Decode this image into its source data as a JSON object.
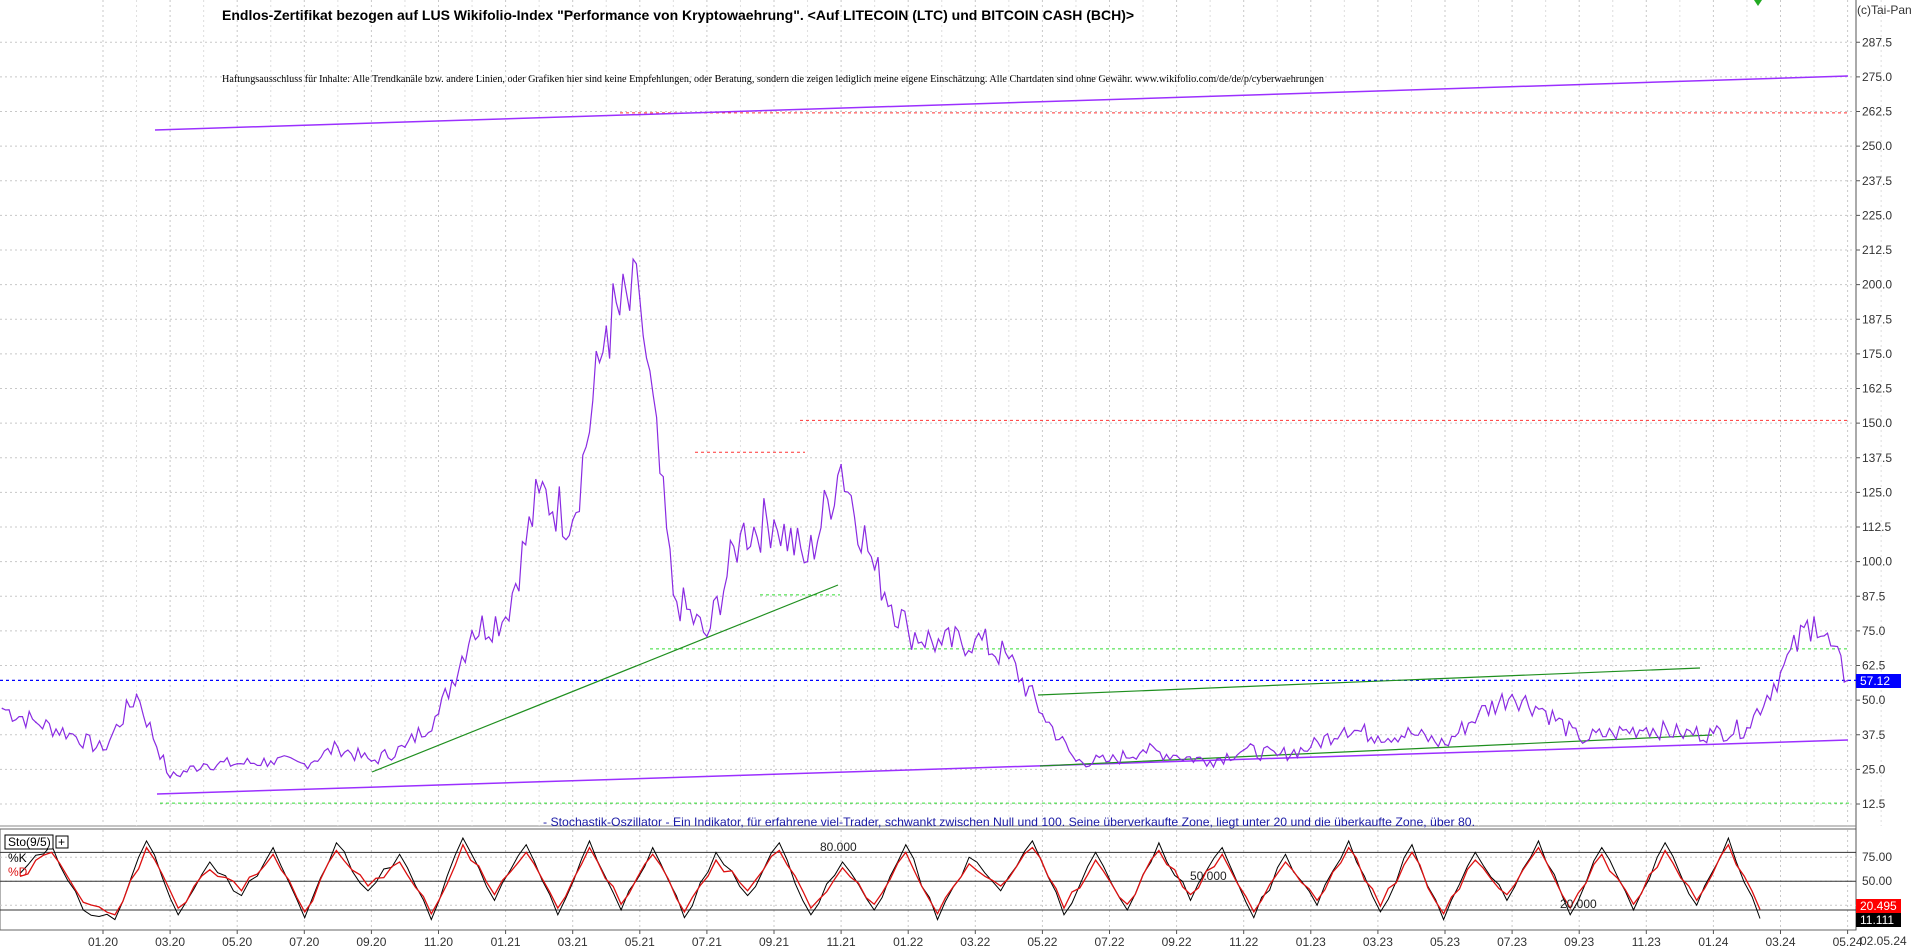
{
  "header": {
    "title": "Endlos-Zertifikat bezogen auf LUS Wikifolio-Index \"Performance von Kryptowaehrung\". <Auf LITECOIN (LTC) und BITCOIN CASH (BCH)>",
    "disclaimer": "Haftungsausschluss für Inhalte: Alle Trendkanäle bzw. andere Linien, oder Grafiken hier sind keine Empfehlungen, oder Beratung, sondern die zeigen lediglich meine eigene Einschätzung. Alle Chartdaten sind ohne Gewähr.  www.wikifolio.com/de/de/p/cyberwaehrungen",
    "copyright": "(c)Tai-Pan"
  },
  "colors": {
    "price": "#8a2be2",
    "trend_purple": "#9b30ff",
    "trend_green": "#1f8f1f",
    "dotted_red": "#ff3333",
    "dotted_green": "#33dd33",
    "dotted_blue": "#0000ff",
    "stoch_k": "#000000",
    "stoch_d": "#dd1111",
    "marker_blue": "#0000ff",
    "marker_red": "#ff0000",
    "marker_black": "#000000"
  },
  "indicator": {
    "description": "- Stochastik-Oszillator - Ein Indikator, für erfahrene viel-Trader, schwankt zwischen Null und 100. Seine überverkaufte Zone, liegt unter 20 und die überkaufte Zone, über 80.",
    "name": "Sto(9/5)",
    "k_label": "%K",
    "d_label": "%D",
    "level_80_label": "80.000",
    "level_50_label": "50.000",
    "level_20_label": "20.000",
    "k_value": "11.111",
    "d_value": "20.495"
  },
  "price_marker": "57.12",
  "date_marker": "02.05.24",
  "chart_data": [
    {
      "type": "line",
      "series": [
        {
          "x": [
            "2019-10",
            "2019-11",
            "2019-12",
            "2020-01",
            "2020-02",
            "2020-03",
            "2020-04",
            "2020-05",
            "2020-06",
            "2020-07",
            "2020-08",
            "2020-09",
            "2020-10",
            "2020-11",
            "2020-12",
            "2021-01",
            "2021-02",
            "2021-03",
            "2021-04",
            "2021-05",
            "2021-06",
            "2021-07",
            "2021-08",
            "2021-09",
            "2021-10",
            "2021-11",
            "2021-12",
            "2022-01",
            "2022-02",
            "2022-03",
            "2022-04",
            "2022-05",
            "2022-06",
            "2022-07",
            "2022-08",
            "2022-09",
            "2022-10",
            "2022-11",
            "2022-12",
            "2023-01",
            "2023-02",
            "2023-03",
            "2023-04",
            "2023-05",
            "2023-06",
            "2023-07",
            "2023-08",
            "2023-09",
            "2023-10",
            "2023-11",
            "2023-12",
            "2024-01",
            "2024-02",
            "2024-03",
            "2024-04",
            "2024-05"
          ],
          "values": [
            47,
            42,
            38,
            32,
            52,
            22,
            27,
            27,
            28,
            27,
            33,
            28,
            33,
            45,
            75,
            80,
            125,
            115,
            185,
            195,
            88,
            73,
            110,
            115,
            100,
            135,
            97,
            75,
            70,
            72,
            65,
            45,
            28,
            28,
            32,
            30,
            28,
            32,
            30,
            33,
            40,
            37,
            38,
            34,
            45,
            52,
            46,
            36,
            38,
            40,
            38,
            38,
            40,
            60,
            80,
            57.12
          ]
        }
      ],
      "yticks": [
        12.5,
        25,
        37.5,
        50,
        62.5,
        75,
        87.5,
        100,
        112.5,
        125,
        137.5,
        150,
        162.5,
        175,
        187.5,
        200,
        212.5,
        225,
        237.5,
        250,
        262.5,
        275,
        287.5
      ],
      "ylim": [
        0,
        300
      ],
      "grid": true,
      "horizontal_levels": {
        "red": [
          262.0,
          151.0,
          139.5
        ],
        "green": [
          68.5,
          88.0,
          12.8
        ],
        "blue": [
          57.12
        ]
      }
    },
    {
      "type": "line",
      "series": [
        {
          "name": "%K",
          "values": [
            58,
            88,
            20,
            10,
            92,
            15,
            70,
            35,
            85,
            12,
            90,
            40,
            78,
            10,
            95,
            30,
            88,
            15,
            92,
            20,
            85,
            12,
            80,
            35,
            90,
            15,
            70,
            20,
            88,
            10,
            75,
            40,
            92,
            15,
            80,
            20,
            90,
            30,
            85,
            12,
            78,
            25,
            92,
            18,
            88,
            10,
            80,
            30,
            92,
            15,
            85,
            20,
            90,
            25,
            95,
            11.111
          ]
        },
        {
          "name": "%D",
          "values": [
            55,
            80,
            28,
            15,
            85,
            22,
            62,
            40,
            78,
            18,
            82,
            45,
            70,
            16,
            88,
            36,
            80,
            22,
            85,
            26,
            78,
            18,
            72,
            40,
            82,
            22,
            64,
            26,
            80,
            16,
            68,
            45,
            85,
            22,
            72,
            26,
            82,
            36,
            78,
            18,
            70,
            30,
            85,
            24,
            80,
            16,
            72,
            36,
            85,
            22,
            78,
            26,
            82,
            30,
            88,
            20.495
          ]
        }
      ],
      "yticks": [
        25,
        50,
        75
      ],
      "ylim": [
        0,
        100
      ],
      "levels": [
        20,
        50,
        80
      ]
    }
  ],
  "xticks": [
    "01.20",
    "03.20",
    "05.20",
    "07.20",
    "09.20",
    "11.20",
    "01.21",
    "03.21",
    "05.21",
    "07.21",
    "09.21",
    "11.21",
    "01.22",
    "03.22",
    "05.22",
    "07.22",
    "09.22",
    "11.22",
    "01.23",
    "03.23",
    "05.23",
    "07.23",
    "09.23",
    "11.23",
    "01.24",
    "03.24",
    "05.24"
  ]
}
